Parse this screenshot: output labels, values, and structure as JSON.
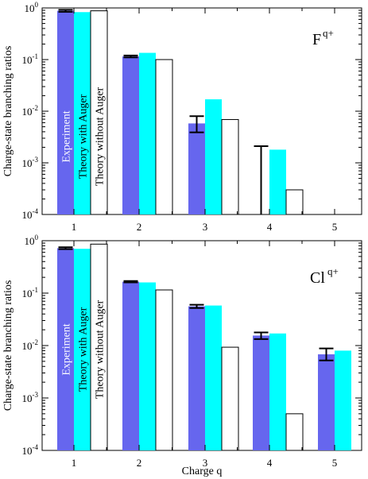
{
  "colors": {
    "experiment": "#6666ee",
    "theory_with_auger": "#00ffff",
    "theory_without_auger": "#ffffff",
    "outline": "#000000"
  },
  "chart_data": [
    {
      "type": "bar",
      "id": "fluorine",
      "ion_label": "F",
      "ion_sup": "q+",
      "ylabel": "Charge-state branching ratios",
      "xlabel": "",
      "yscale": "log",
      "ylim": [
        0.0001,
        1
      ],
      "yticks": [
        "10",
        "10",
        "10",
        "10",
        "10"
      ],
      "ytick_exponents": [
        "0",
        "-1",
        "-2",
        "-3",
        "-4"
      ],
      "categories": [
        "1",
        "2",
        "3",
        "4",
        "5"
      ],
      "series": [
        {
          "name": "Experiment",
          "values": [
            0.88,
            0.115,
            0.0058,
            null,
            null
          ],
          "err_low": [
            0.84,
            0.11,
            0.0039,
            null,
            null
          ],
          "err_high": [
            0.92,
            0.12,
            0.008,
            0.0021,
            null
          ],
          "err_floor_to_axis": [
            false,
            false,
            false,
            true,
            false
          ]
        },
        {
          "name": "Theory with Auger",
          "values": [
            0.83,
            0.135,
            0.017,
            0.0018,
            null
          ]
        },
        {
          "name": "Theory without Auger",
          "values": [
            0.88,
            0.1,
            0.0069,
            0.0003,
            null
          ]
        }
      ]
    },
    {
      "type": "bar",
      "id": "chlorine",
      "ion_label": "Cl",
      "ion_sup": "q+",
      "ylabel": "Charge-state branching ratios",
      "xlabel": "Charge q",
      "yscale": "log",
      "ylim": [
        0.0001,
        1
      ],
      "yticks": [
        "10",
        "10",
        "10",
        "10",
        "10"
      ],
      "ytick_exponents": [
        "0",
        "-1",
        "-2",
        "-3",
        "-4"
      ],
      "categories": [
        "1",
        "2",
        "3",
        "4",
        "5"
      ],
      "series": [
        {
          "name": "Experiment",
          "values": [
            0.72,
            0.165,
            0.056,
            0.0155,
            0.0068
          ],
          "err_low": [
            0.69,
            0.16,
            0.052,
            0.0133,
            0.0052
          ],
          "err_high": [
            0.75,
            0.17,
            0.06,
            0.0178,
            0.0088
          ]
        },
        {
          "name": "Theory with Auger",
          "values": [
            0.7,
            0.16,
            0.058,
            0.017,
            0.008
          ]
        },
        {
          "name": "Theory without Auger",
          "values": [
            0.86,
            0.115,
            0.0093,
            0.0005,
            null
          ]
        }
      ]
    }
  ]
}
